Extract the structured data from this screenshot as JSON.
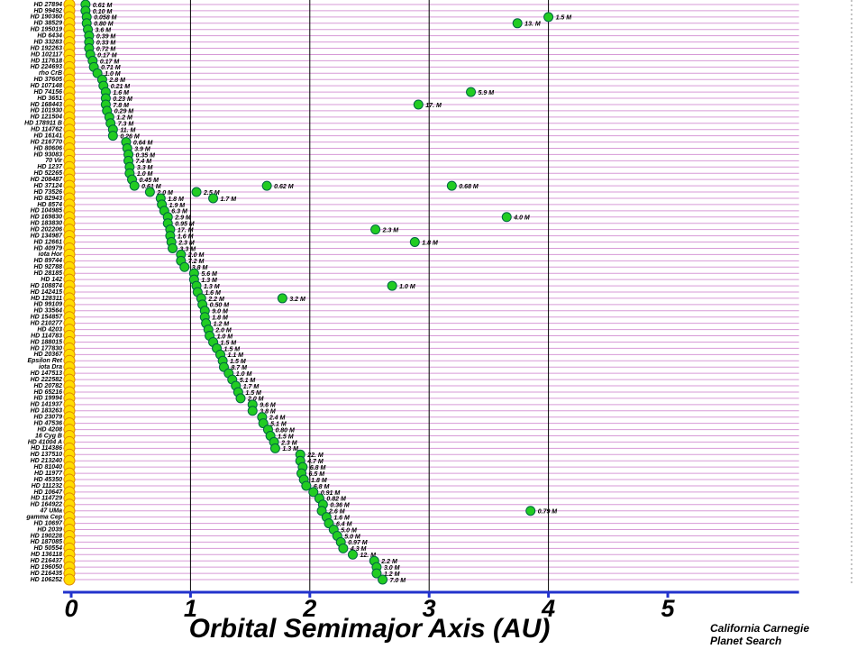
{
  "chart_data": {
    "type": "planet-rows",
    "xlabel": "Orbital Semimajor Axis  (AU)",
    "credit": [
      "California Carnegie",
      "Planet Search"
    ],
    "xlim": [
      0,
      6.1
    ],
    "xticks": [
      0,
      1,
      2,
      3,
      4,
      5
    ],
    "grid_x": [
      1,
      2,
      3,
      4
    ],
    "star_color": "#ffdd00",
    "planet_color": "#22cc22",
    "row_line_color": "#d79ad7",
    "axis_color": "#2233cc",
    "rows": [
      {
        "star": "HD 27894",
        "planets": [
          {
            "a": 0.12,
            "mass": "0.61 M"
          }
        ]
      },
      {
        "star": "HD 99492",
        "planets": [
          {
            "a": 0.12,
            "mass": "0.10 M"
          }
        ]
      },
      {
        "star": "HD 190360",
        "planets": [
          {
            "a": 0.13,
            "mass": "0.058 M"
          },
          {
            "a": 4.0,
            "mass": "1.5 M"
          }
        ]
      },
      {
        "star": "HD 38529",
        "planets": [
          {
            "a": 0.13,
            "mass": "0.80 M"
          },
          {
            "a": 3.74,
            "mass": "13. M"
          }
        ]
      },
      {
        "star": "HD 195019",
        "planets": [
          {
            "a": 0.14,
            "mass": "3.6 M"
          }
        ]
      },
      {
        "star": "HD 6434",
        "planets": [
          {
            "a": 0.15,
            "mass": "0.39 M"
          }
        ]
      },
      {
        "star": "HD 33283",
        "planets": [
          {
            "a": 0.15,
            "mass": "0.33 M"
          }
        ]
      },
      {
        "star": "HD 192263",
        "planets": [
          {
            "a": 0.15,
            "mass": "0.72 M"
          }
        ]
      },
      {
        "star": "HD 102117",
        "planets": [
          {
            "a": 0.16,
            "mass": "0.17 M"
          }
        ]
      },
      {
        "star": "HD 117618",
        "planets": [
          {
            "a": 0.18,
            "mass": "0.17 M"
          }
        ]
      },
      {
        "star": "HD 224693",
        "planets": [
          {
            "a": 0.19,
            "mass": "0.71 M"
          }
        ]
      },
      {
        "star": "rho CrB",
        "planets": [
          {
            "a": 0.22,
            "mass": "1.0 M"
          }
        ]
      },
      {
        "star": "HD 37605",
        "planets": [
          {
            "a": 0.26,
            "mass": "2.8 M"
          }
        ]
      },
      {
        "star": "HD 107148",
        "planets": [
          {
            "a": 0.27,
            "mass": "0.21 M"
          }
        ]
      },
      {
        "star": "HD 74156",
        "planets": [
          {
            "a": 0.29,
            "mass": "1.6 M"
          },
          {
            "a": 3.35,
            "mass": "5.9 M"
          }
        ]
      },
      {
        "star": "HD 3651",
        "planets": [
          {
            "a": 0.29,
            "mass": "0.23 M"
          }
        ]
      },
      {
        "star": "HD 168443",
        "planets": [
          {
            "a": 0.29,
            "mass": "7.8 M"
          },
          {
            "a": 2.91,
            "mass": "17. M"
          }
        ]
      },
      {
        "star": "HD 101930",
        "planets": [
          {
            "a": 0.3,
            "mass": "0.29 M"
          }
        ]
      },
      {
        "star": "HD 121504",
        "planets": [
          {
            "a": 0.32,
            "mass": "1.2 M"
          }
        ]
      },
      {
        "star": "HD 178911 B",
        "planets": [
          {
            "a": 0.33,
            "mass": "7.3 M"
          }
        ]
      },
      {
        "star": "HD 114762",
        "planets": [
          {
            "a": 0.35,
            "mass": "11. M"
          }
        ]
      },
      {
        "star": "HD 16141",
        "planets": [
          {
            "a": 0.35,
            "mass": "0.26 M"
          }
        ]
      },
      {
        "star": "HD 216770",
        "planets": [
          {
            "a": 0.46,
            "mass": "0.64 M"
          }
        ]
      },
      {
        "star": "HD 80606",
        "planets": [
          {
            "a": 0.47,
            "mass": "3.9 M"
          }
        ]
      },
      {
        "star": "HD 93083",
        "planets": [
          {
            "a": 0.48,
            "mass": "0.35 M"
          }
        ]
      },
      {
        "star": "70 Vir",
        "planets": [
          {
            "a": 0.48,
            "mass": "7.4 M"
          }
        ]
      },
      {
        "star": "HD 1237",
        "planets": [
          {
            "a": 0.49,
            "mass": "3.3 M"
          }
        ]
      },
      {
        "star": "HD 52265",
        "planets": [
          {
            "a": 0.49,
            "mass": "1.0 M"
          }
        ]
      },
      {
        "star": "HD 208487",
        "planets": [
          {
            "a": 0.51,
            "mass": "0.45 M"
          }
        ]
      },
      {
        "star": "HD 37124",
        "planets": [
          {
            "a": 0.53,
            "mass": "0.61 M"
          },
          {
            "a": 1.64,
            "mass": "0.62 M"
          },
          {
            "a": 3.19,
            "mass": "0.68 M"
          }
        ]
      },
      {
        "star": "HD 73526",
        "planets": [
          {
            "a": 0.66,
            "mass": "2.0 M"
          },
          {
            "a": 1.05,
            "mass": "2.5 M"
          }
        ]
      },
      {
        "star": "HD 82943",
        "planets": [
          {
            "a": 0.75,
            "mass": "1.8 M"
          },
          {
            "a": 1.19,
            "mass": "1.7 M"
          }
        ]
      },
      {
        "star": "HD 8574",
        "planets": [
          {
            "a": 0.76,
            "mass": "1.9 M"
          }
        ]
      },
      {
        "star": "HD 104985",
        "planets": [
          {
            "a": 0.78,
            "mass": "6.3 M"
          }
        ]
      },
      {
        "star": "HD 169830",
        "planets": [
          {
            "a": 0.81,
            "mass": "2.9 M"
          },
          {
            "a": 3.65,
            "mass": "4.0 M"
          }
        ]
      },
      {
        "star": "HD 183830",
        "planets": [
          {
            "a": 0.81,
            "mass": "0.95 M"
          }
        ]
      },
      {
        "star": "HD 202206",
        "planets": [
          {
            "a": 0.83,
            "mass": "17. M"
          },
          {
            "a": 2.55,
            "mass": "2.3 M"
          }
        ]
      },
      {
        "star": "HD 134987",
        "planets": [
          {
            "a": 0.83,
            "mass": "1.6 M"
          }
        ]
      },
      {
        "star": "HD 12661",
        "planets": [
          {
            "a": 0.84,
            "mass": "2.3 M"
          },
          {
            "a": 2.88,
            "mass": "1.8 M"
          }
        ]
      },
      {
        "star": "HD 40979",
        "planets": [
          {
            "a": 0.85,
            "mass": "3.3 M"
          }
        ]
      },
      {
        "star": "iota Hor",
        "planets": [
          {
            "a": 0.92,
            "mass": "2.0 M"
          }
        ]
      },
      {
        "star": "HD 89744",
        "planets": [
          {
            "a": 0.92,
            "mass": "7.2 M"
          }
        ]
      },
      {
        "star": "HD 92788",
        "planets": [
          {
            "a": 0.95,
            "mass": "3.8 M"
          }
        ]
      },
      {
        "star": "HD 28185",
        "planets": [
          {
            "a": 1.03,
            "mass": "5.6 M"
          }
        ]
      },
      {
        "star": "HD 142",
        "planets": [
          {
            "a": 1.03,
            "mass": "1.3 M"
          }
        ]
      },
      {
        "star": "HD 108874",
        "planets": [
          {
            "a": 1.05,
            "mass": "1.3 M"
          },
          {
            "a": 2.69,
            "mass": "1.0 M"
          }
        ]
      },
      {
        "star": "HD 142415",
        "planets": [
          {
            "a": 1.06,
            "mass": "1.6 M"
          }
        ]
      },
      {
        "star": "HD 128311",
        "planets": [
          {
            "a": 1.09,
            "mass": "2.2 M"
          },
          {
            "a": 1.77,
            "mass": "3.2 M"
          }
        ]
      },
      {
        "star": "HD 99109",
        "planets": [
          {
            "a": 1.1,
            "mass": "0.50 M"
          }
        ]
      },
      {
        "star": "HD 33564",
        "planets": [
          {
            "a": 1.12,
            "mass": "9.0 M"
          }
        ]
      },
      {
        "star": "HD 154857",
        "planets": [
          {
            "a": 1.12,
            "mass": "1.8 M"
          }
        ]
      },
      {
        "star": "HD 210277",
        "planets": [
          {
            "a": 1.13,
            "mass": "1.2 M"
          }
        ]
      },
      {
        "star": "HD 4203",
        "planets": [
          {
            "a": 1.15,
            "mass": "2.0 M"
          }
        ]
      },
      {
        "star": "HD 114783",
        "planets": [
          {
            "a": 1.16,
            "mass": "1.0 M"
          }
        ]
      },
      {
        "star": "HD 188015",
        "planets": [
          {
            "a": 1.19,
            "mass": "1.5 M"
          }
        ]
      },
      {
        "star": "HD 177830",
        "planets": [
          {
            "a": 1.22,
            "mass": "1.5 M"
          }
        ]
      },
      {
        "star": "HD 20367",
        "planets": [
          {
            "a": 1.25,
            "mass": "1.1 M"
          }
        ]
      },
      {
        "star": "Epsilon Ret",
        "planets": [
          {
            "a": 1.27,
            "mass": "1.5 M"
          }
        ]
      },
      {
        "star": "iota Dra",
        "planets": [
          {
            "a": 1.28,
            "mass": "8.7 M"
          }
        ]
      },
      {
        "star": "HD 147513",
        "planets": [
          {
            "a": 1.32,
            "mass": "1.0 M"
          }
        ]
      },
      {
        "star": "HD 222582",
        "planets": [
          {
            "a": 1.35,
            "mass": "5.1 M"
          }
        ]
      },
      {
        "star": "HD 20782",
        "planets": [
          {
            "a": 1.38,
            "mass": "1.7 M"
          }
        ]
      },
      {
        "star": "HD 65216",
        "planets": [
          {
            "a": 1.4,
            "mass": "1.5 M"
          }
        ]
      },
      {
        "star": "HD 19994",
        "planets": [
          {
            "a": 1.42,
            "mass": "2.0 M"
          }
        ]
      },
      {
        "star": "HD 141937",
        "planets": [
          {
            "a": 1.52,
            "mass": "9.6 M"
          }
        ]
      },
      {
        "star": "HD 183263",
        "planets": [
          {
            "a": 1.52,
            "mass": "3.8 M"
          }
        ]
      },
      {
        "star": "HD 23079",
        "planets": [
          {
            "a": 1.6,
            "mass": "2.4 M"
          }
        ]
      },
      {
        "star": "HD 47536",
        "planets": [
          {
            "a": 1.61,
            "mass": "5.1 M"
          }
        ]
      },
      {
        "star": "HD 4208",
        "planets": [
          {
            "a": 1.65,
            "mass": "0.80 M"
          }
        ]
      },
      {
        "star": "16 Cyg B",
        "planets": [
          {
            "a": 1.67,
            "mass": "1.5 M"
          }
        ]
      },
      {
        "star": "HD 41004 A",
        "planets": [
          {
            "a": 1.7,
            "mass": "2.3 M"
          }
        ]
      },
      {
        "star": "HD 114386",
        "planets": [
          {
            "a": 1.71,
            "mass": "1.3 M"
          }
        ]
      },
      {
        "star": "HD 137510",
        "planets": [
          {
            "a": 1.92,
            "mass": "22. M"
          }
        ]
      },
      {
        "star": "HD 213240",
        "planets": [
          {
            "a": 1.92,
            "mass": "4.7 M"
          }
        ]
      },
      {
        "star": "HD 81040",
        "planets": [
          {
            "a": 1.94,
            "mass": "6.8 M"
          }
        ]
      },
      {
        "star": "HD 11977",
        "planets": [
          {
            "a": 1.93,
            "mass": "6.5 M"
          }
        ]
      },
      {
        "star": "HD 45350",
        "planets": [
          {
            "a": 1.95,
            "mass": "1.8 M"
          }
        ]
      },
      {
        "star": "HD 111232",
        "planets": [
          {
            "a": 1.97,
            "mass": "6.8 M"
          }
        ]
      },
      {
        "star": "HD 10647",
        "planets": [
          {
            "a": 2.03,
            "mass": "0.91 M"
          }
        ]
      },
      {
        "star": "HD 114729",
        "planets": [
          {
            "a": 2.08,
            "mass": "0.82 M"
          }
        ]
      },
      {
        "star": "HD 164922",
        "planets": [
          {
            "a": 2.11,
            "mass": "0.36 M"
          }
        ]
      },
      {
        "star": "47 UMa",
        "planets": [
          {
            "a": 2.1,
            "mass": "2.6 M"
          },
          {
            "a": 3.85,
            "mass": "0.79 M"
          }
        ]
      },
      {
        "star": "gamma Cep",
        "planets": [
          {
            "a": 2.14,
            "mass": "1.6 M"
          }
        ]
      },
      {
        "star": "HD 10697",
        "planets": [
          {
            "a": 2.16,
            "mass": "6.4 M"
          }
        ]
      },
      {
        "star": "HD 2039",
        "planets": [
          {
            "a": 2.2,
            "mass": "5.0 M"
          }
        ]
      },
      {
        "star": "HD 190228",
        "planets": [
          {
            "a": 2.23,
            "mass": "5.0 M"
          }
        ]
      },
      {
        "star": "HD 187085",
        "planets": [
          {
            "a": 2.26,
            "mass": "0.97 M"
          }
        ]
      },
      {
        "star": "HD 50554",
        "planets": [
          {
            "a": 2.28,
            "mass": "4.3 M"
          }
        ]
      },
      {
        "star": "HD 136118",
        "planets": [
          {
            "a": 2.36,
            "mass": "12. M"
          }
        ]
      },
      {
        "star": "HD 216437",
        "planets": [
          {
            "a": 2.54,
            "mass": "2.2 M"
          }
        ]
      },
      {
        "star": "HD 196050",
        "planets": [
          {
            "a": 2.56,
            "mass": "3.0 M"
          }
        ]
      },
      {
        "star": "HD 216435",
        "planets": [
          {
            "a": 2.56,
            "mass": "1.2 M"
          }
        ]
      },
      {
        "star": "HD 106252",
        "planets": [
          {
            "a": 2.61,
            "mass": "7.0 M"
          }
        ]
      }
    ]
  }
}
